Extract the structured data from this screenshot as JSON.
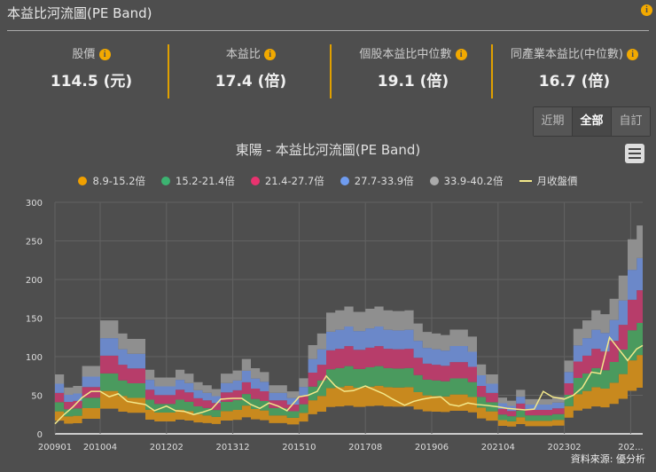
{
  "header": {
    "title": "本益比河流圖(PE Band)",
    "info_icon": "info-icon"
  },
  "stats": [
    {
      "label": "股價",
      "value": "114.5 (元)"
    },
    {
      "label": "本益比",
      "value": "17.4 (倍)"
    },
    {
      "label": "個股本益比中位數",
      "value": "19.1 (倍)"
    },
    {
      "label": "同產業本益比(中位數)",
      "value": "16.7 (倍)"
    }
  ],
  "range_buttons": [
    {
      "label": "近期",
      "active": false
    },
    {
      "label": "全部",
      "active": true
    },
    {
      "label": "自訂",
      "active": false
    }
  ],
  "source": "資料來源: 優分析",
  "colors": {
    "accent": "#f2a900",
    "background": "#4e4e4e"
  },
  "chart_data": {
    "type": "area",
    "title": "東陽 - 本益比河流圖(PE Band)",
    "legend": [
      {
        "name": "8.9-15.2倍",
        "color": "#f0a000",
        "band_color": "#c8891e"
      },
      {
        "name": "15.2-21.4倍",
        "color": "#3cb371",
        "band_color": "#4a9a5e"
      },
      {
        "name": "21.4-27.7倍",
        "color": "#e8336f",
        "band_color": "#b73d6a"
      },
      {
        "name": "27.7-33.9倍",
        "color": "#6f9cf0",
        "band_color": "#6b88c9"
      },
      {
        "name": "33.9-40.2倍",
        "color": "#aaaaaa",
        "band_color": "#8f8f8f"
      },
      {
        "name": "月收盤價",
        "color": "#f3e88a"
      }
    ],
    "pe_multiples": [
      8.9,
      15.2,
      21.4,
      27.7,
      33.9,
      40.2
    ],
    "ylim": [
      0,
      300
    ],
    "yticks": [
      0,
      50,
      100,
      150,
      200,
      250,
      300
    ],
    "xticks": [
      "200901",
      "201004",
      "201202",
      "201312",
      "201510",
      "201708",
      "201906",
      "202104",
      "202302",
      "202..."
    ],
    "legend_position": "top",
    "grid": true,
    "dates": [
      "2009-01",
      "2009-04",
      "2009-07",
      "2009-10",
      "2010-01",
      "2010-04",
      "2010-07",
      "2010-10",
      "2011-01",
      "2011-04",
      "2011-07",
      "2011-10",
      "2012-02",
      "2012-05",
      "2012-08",
      "2012-11",
      "2013-02",
      "2013-05",
      "2013-08",
      "2013-12",
      "2014-03",
      "2014-06",
      "2014-09",
      "2014-12",
      "2015-03",
      "2015-06",
      "2015-10",
      "2016-01",
      "2016-04",
      "2016-07",
      "2016-10",
      "2017-01",
      "2017-04",
      "2017-08",
      "2017-11",
      "2018-02",
      "2018-05",
      "2018-09",
      "2018-12",
      "2019-03",
      "2019-06",
      "2019-09",
      "2019-12",
      "2020-03",
      "2020-06",
      "2020-09",
      "2020-12",
      "2021-04",
      "2021-07",
      "2021-10",
      "2022-01",
      "2022-04",
      "2022-07",
      "2022-10",
      "2023-02",
      "2023-05",
      "2023-08",
      "2023-11",
      "2024-02",
      "2024-05",
      "2024-08",
      "2024-11",
      "2025-02",
      "2025-04"
    ],
    "band_top_40_2x": [
      77,
      60,
      62,
      88,
      88,
      147,
      147,
      130,
      123,
      123,
      83,
      73,
      73,
      83,
      78,
      67,
      63,
      58,
      78,
      82,
      97,
      85,
      80,
      63,
      63,
      55,
      72,
      115,
      130,
      157,
      160,
      165,
      158,
      162,
      165,
      160,
      159,
      160,
      143,
      132,
      130,
      128,
      135,
      135,
      126,
      90,
      77,
      47,
      43,
      57,
      45,
      45,
      45,
      48,
      95,
      136,
      147,
      160,
      155,
      175,
      205,
      252,
      270,
      265
    ],
    "monthly_close": [
      13,
      25,
      35,
      47,
      55,
      55,
      48,
      52,
      42,
      40,
      38,
      30,
      36,
      30,
      29,
      25,
      28,
      32,
      45,
      46,
      46,
      38,
      33,
      40,
      36,
      30,
      48,
      50,
      55,
      75,
      62,
      55,
      56,
      62,
      57,
      52,
      45,
      37,
      42,
      45,
      47,
      48,
      38,
      36,
      40,
      38,
      37,
      35,
      33,
      32,
      31,
      32,
      55,
      48,
      45,
      50,
      60,
      80,
      78,
      125,
      110,
      95,
      110,
      114.5
    ]
  }
}
